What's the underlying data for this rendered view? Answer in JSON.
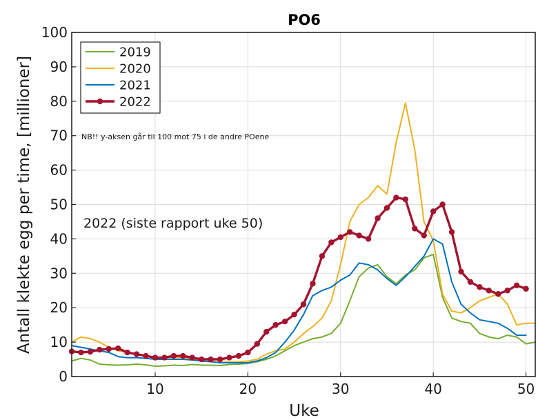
{
  "chart_data": {
    "type": "line",
    "title": "PO6",
    "xlabel": "Uke",
    "ylabel": "Antall klekte egg per time, [millioner]",
    "xlim": [
      1,
      51
    ],
    "ylim": [
      0,
      100
    ],
    "xticks": [
      10,
      20,
      30,
      40,
      50
    ],
    "yticks": [
      0,
      10,
      20,
      30,
      40,
      50,
      60,
      70,
      80,
      90,
      100
    ],
    "grid": true,
    "legend_position": "top-left",
    "annotations": [
      "NB!! y-aksen går til 100 mot 75 i de andre POene",
      "2022 (siste rapport uke 50)"
    ],
    "series": [
      {
        "name": "2019",
        "color": "#77ac30",
        "x": [
          1,
          2,
          3,
          4,
          5,
          6,
          7,
          8,
          9,
          10,
          11,
          12,
          13,
          14,
          15,
          16,
          17,
          18,
          19,
          20,
          21,
          22,
          23,
          24,
          25,
          26,
          27,
          28,
          29,
          30,
          31,
          32,
          33,
          34,
          35,
          36,
          37,
          38,
          39,
          40,
          41,
          42,
          43,
          44,
          45,
          46,
          47,
          48,
          49,
          50,
          51
        ],
        "values": [
          4.5,
          5.3,
          4.8,
          3.6,
          3.4,
          3.3,
          3.4,
          3.6,
          3.4,
          3.0,
          3.1,
          3.3,
          3.2,
          3.5,
          3.3,
          3.3,
          3.2,
          3.5,
          3.6,
          3.8,
          4.3,
          5.0,
          6.0,
          7.5,
          9.0,
          10.0,
          11.0,
          11.5,
          12.5,
          15.5,
          22.0,
          29.0,
          31.5,
          32.5,
          29.0,
          27.0,
          29.5,
          31.0,
          34.5,
          35.5,
          23.0,
          17.0,
          16.0,
          15.5,
          12.5,
          11.5,
          11.0,
          12.0,
          11.5,
          9.5,
          10.0
        ]
      },
      {
        "name": "2020",
        "color": "#edb120",
        "x": [
          1,
          2,
          3,
          4,
          5,
          6,
          7,
          8,
          9,
          10,
          11,
          12,
          13,
          14,
          15,
          16,
          17,
          18,
          19,
          20,
          21,
          22,
          23,
          24,
          25,
          26,
          27,
          28,
          29,
          30,
          31,
          32,
          33,
          34,
          35,
          36,
          37,
          38,
          39,
          40,
          41,
          42,
          43,
          44,
          45,
          46,
          47,
          48,
          49,
          50,
          51
        ],
        "values": [
          10.0,
          11.5,
          11.0,
          10.0,
          8.5,
          7.5,
          7.0,
          6.5,
          6.0,
          5.5,
          5.5,
          5.5,
          5.5,
          5.0,
          4.5,
          4.3,
          4.2,
          4.2,
          4.3,
          4.5,
          5.0,
          6.5,
          7.5,
          8.0,
          10.0,
          12.5,
          14.5,
          17.0,
          22.0,
          32.5,
          45.0,
          50.0,
          52.0,
          55.5,
          53.0,
          68.0,
          79.5,
          66.0,
          45.0,
          39.5,
          24.0,
          19.0,
          18.5,
          20.0,
          22.0,
          23.0,
          24.0,
          21.0,
          15.0,
          15.5,
          15.5
        ]
      },
      {
        "name": "2021",
        "color": "#0072bd",
        "x": [
          1,
          2,
          3,
          4,
          5,
          6,
          7,
          8,
          9,
          10,
          11,
          12,
          13,
          14,
          15,
          16,
          17,
          18,
          19,
          20,
          21,
          22,
          23,
          24,
          25,
          26,
          27,
          28,
          29,
          30,
          31,
          32,
          33,
          34,
          35,
          36,
          37,
          38,
          39,
          40,
          41,
          42,
          43,
          44,
          45,
          46,
          47,
          48,
          49,
          50
        ],
        "values": [
          9.0,
          8.5,
          8.0,
          7.5,
          7.0,
          5.8,
          5.5,
          5.5,
          5.3,
          5.0,
          5.0,
          5.0,
          5.0,
          4.8,
          4.5,
          4.3,
          4.0,
          4.0,
          4.0,
          4.0,
          4.5,
          5.5,
          7.0,
          10.0,
          13.5,
          18.0,
          23.5,
          25.0,
          26.0,
          28.0,
          29.5,
          33.0,
          32.5,
          31.0,
          28.5,
          26.5,
          29.0,
          32.0,
          35.0,
          40.0,
          38.5,
          27.5,
          21.0,
          18.5,
          16.5,
          16.0,
          15.5,
          14.0,
          12.0,
          12.0
        ]
      },
      {
        "name": "2022",
        "color": "#a2142f",
        "x": [
          1,
          2,
          3,
          4,
          5,
          6,
          7,
          8,
          9,
          10,
          11,
          12,
          13,
          14,
          15,
          16,
          17,
          18,
          19,
          20,
          21,
          22,
          23,
          24,
          25,
          26,
          27,
          28,
          29,
          30,
          31,
          32,
          33,
          34,
          35,
          36,
          37,
          38,
          39,
          40,
          41,
          42,
          43,
          44,
          45,
          46,
          47,
          48,
          49,
          50
        ],
        "values": [
          7.3,
          7.0,
          7.2,
          7.8,
          8.0,
          8.2,
          7.0,
          6.5,
          6.0,
          5.5,
          5.5,
          6.0,
          6.0,
          5.5,
          5.0,
          5.0,
          5.0,
          5.5,
          6.0,
          7.0,
          9.5,
          13.0,
          15.0,
          16.0,
          18.0,
          21.0,
          27.0,
          35.0,
          39.0,
          40.5,
          42.0,
          41.0,
          40.0,
          46.0,
          49.0,
          52.0,
          51.5,
          43.0,
          41.0,
          48.0,
          50.0,
          42.0,
          30.5,
          27.5,
          26.0,
          25.0,
          24.0,
          25.0,
          26.5,
          25.5
        ]
      }
    ]
  }
}
